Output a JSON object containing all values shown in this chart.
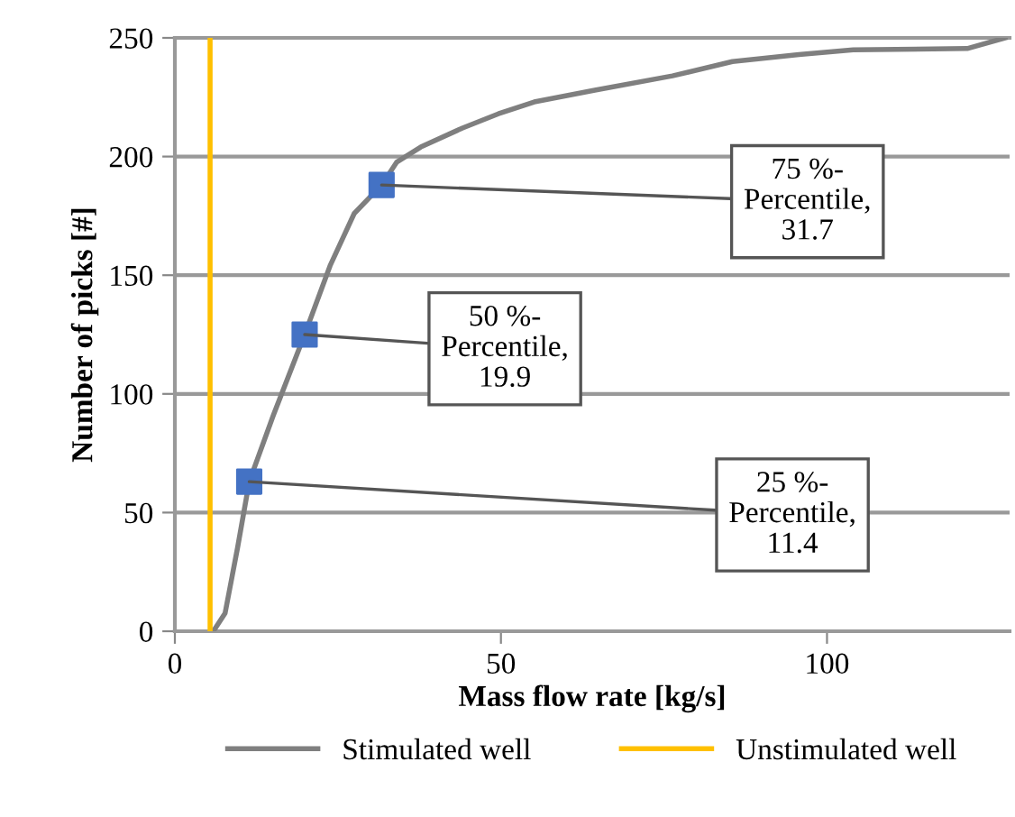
{
  "chart_data": {
    "type": "line",
    "xlabel": "Mass flow rate [kg/s]",
    "ylabel": "Number of picks [#]",
    "xlim": [
      0,
      128
    ],
    "xticks": [
      0,
      50,
      100
    ],
    "ylim": [
      0,
      250
    ],
    "yticks": [
      0,
      50,
      100,
      150,
      200,
      250
    ],
    "grid": "y",
    "legend": "bottom",
    "series": [
      {
        "name": "Stimulated well",
        "color": "#7f7f7f",
        "x": [
          5.9,
          7.7,
          9.6,
          11.4,
          15.1,
          19.9,
          23.8,
          27.5,
          31.7,
          34,
          37.7,
          44.1,
          49.6,
          55.1,
          64.4,
          76.3,
          85.5,
          95.7,
          104,
          121.5,
          127.3
        ],
        "values": [
          0,
          7.6,
          35,
          63,
          91,
          125,
          154,
          176,
          188,
          197.6,
          204,
          212,
          218,
          223,
          228,
          234,
          240,
          243,
          245,
          245.5,
          250
        ]
      },
      {
        "name": "Unstimulated well",
        "color": "#ffc000",
        "x": [
          5.4,
          5.4
        ],
        "values": [
          0,
          250
        ]
      },
      {
        "color": "#4472c4",
        "type": "scatter",
        "marker": "square",
        "x": [
          11.4,
          19.9,
          31.7
        ],
        "values": [
          63,
          125,
          188
        ]
      }
    ],
    "annotations": [
      {
        "text": "25 %-\nPercentile,\n11.4",
        "x": 11.4,
        "y": 63
      },
      {
        "text": "50 %-\nPercentile,\n19.9",
        "x": 19.9,
        "y": 125
      },
      {
        "text": "75 %-\nPercentile,\n31.7",
        "x": 31.7,
        "y": 188
      }
    ]
  }
}
